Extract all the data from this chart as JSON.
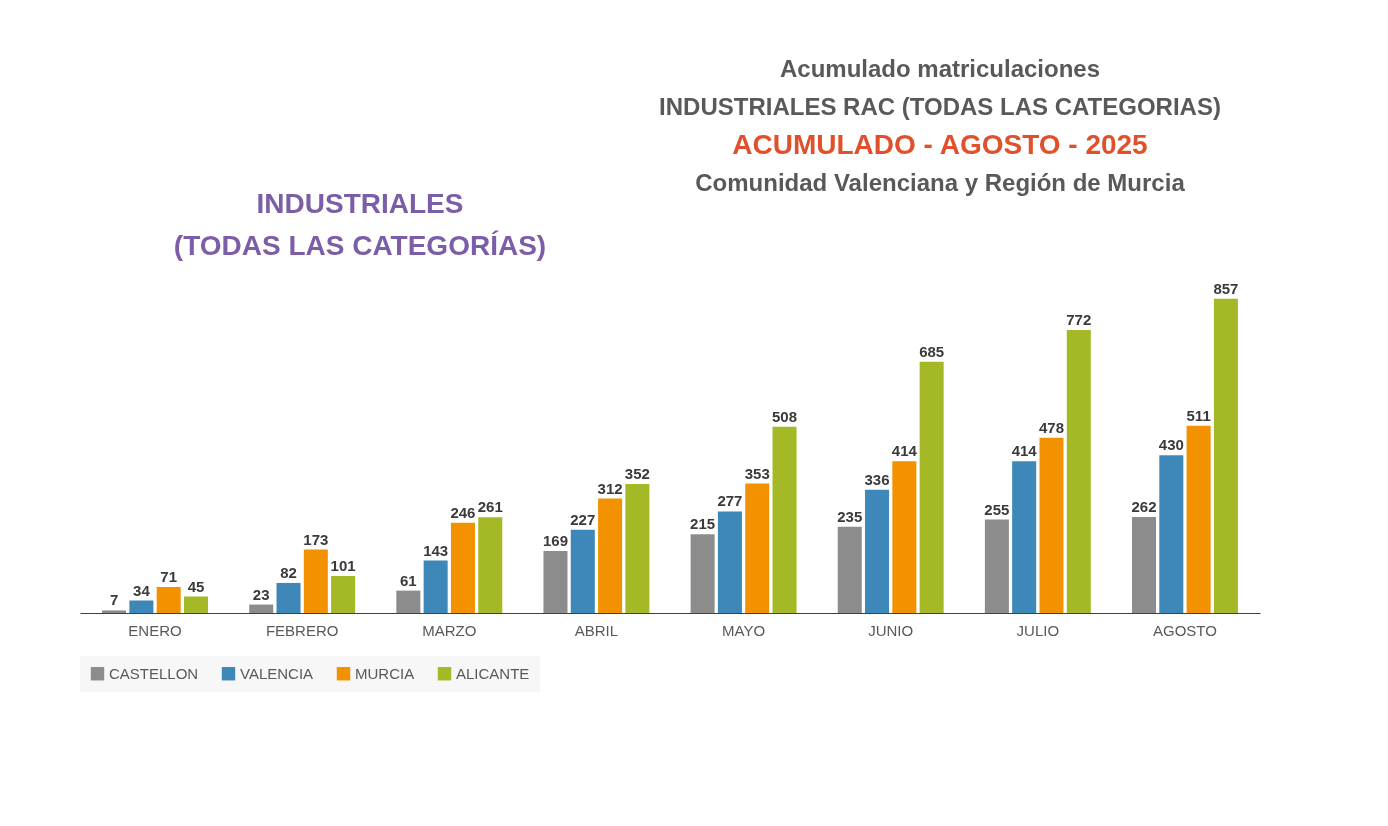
{
  "chart_data": {
    "type": "bar",
    "title": "Acumulado matriculaciones",
    "subtitle": "INDUSTRIALES RAC (TODAS LAS CATEGORIAS)\nACUMULADO - AGOSTO - 2025\nComunidad Valenciana y Región de Murcia",
    "annotations": [
      "INDUSTRIALES",
      "(TODAS LAS CATEGORÍAS)"
    ],
    "categories": [
      "ENERO",
      "FEBRERO",
      "MARZO",
      "ABRIL",
      "MAYO",
      "JUNIO",
      "JULIO",
      "AGOSTO"
    ],
    "series": [
      {
        "name": "CASTELLON",
        "color": "#8c8c8c",
        "values": [
          7,
          23,
          61,
          169,
          215,
          235,
          255,
          262
        ]
      },
      {
        "name": "VALENCIA",
        "color": "#3d88b9",
        "values": [
          34,
          82,
          143,
          227,
          277,
          336,
          414,
          430
        ]
      },
      {
        "name": "MURCIA",
        "color": "#f39200",
        "values": [
          71,
          173,
          246,
          312,
          353,
          414,
          478,
          511
        ]
      },
      {
        "name": "ALICANTE",
        "color": "#a5b825",
        "values": [
          45,
          101,
          261,
          352,
          508,
          685,
          772,
          857
        ]
      }
    ],
    "data_labels": true,
    "legend": "bottom left",
    "tick_labels": "x"
  }
}
